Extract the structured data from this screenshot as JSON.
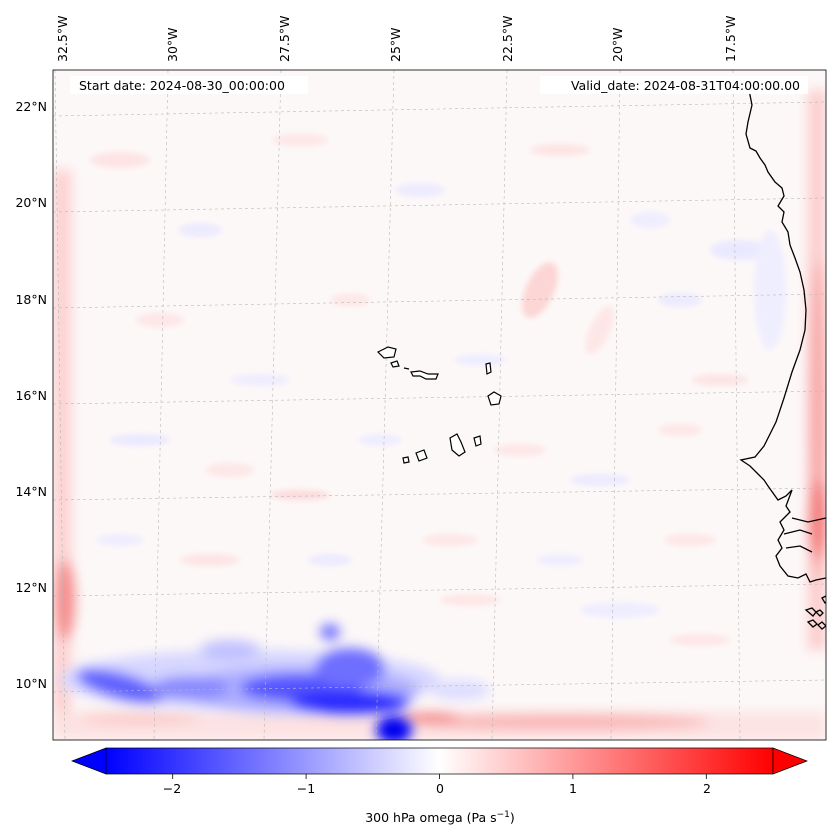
{
  "map": {
    "start_date": "Start date: 2024-08-30_00:00:00",
    "valid_date": "Valid_date: 2024-08-31T04:00:00.00",
    "lon_labels": [
      "32.5°W",
      "30°W",
      "27.5°W",
      "25°W",
      "22.5°W",
      "20°W",
      "17.5°W"
    ],
    "lat_labels": [
      "22°N",
      "20°N",
      "18°N",
      "16°N",
      "14°N",
      "12°N",
      "10°N"
    ],
    "extent": {
      "lon_min": -32.5,
      "lon_max": -15.3,
      "lat_min": 8.8,
      "lat_max": 22.8
    }
  },
  "field": {
    "variable": "300 hPa omega",
    "features": [
      {
        "name": "strong-ascent-band",
        "lon": -28.5,
        "lat": 9.8,
        "omega": -2.2
      },
      {
        "name": "ascent-core",
        "lon": -24.9,
        "lat": 9.3,
        "omega": -2.6
      },
      {
        "name": "ascent-cluster",
        "lon": -26.5,
        "lat": 10.2,
        "omega": -1.4
      },
      {
        "name": "western-edge-descent",
        "lon": -32.3,
        "lat": 11.5,
        "omega": 1.6
      },
      {
        "name": "eastern-edge-descent",
        "lon": -15.5,
        "lat": 12.6,
        "omega": 1.8
      },
      {
        "name": "southern-edge-descent",
        "lon": -21.0,
        "lat": 9.0,
        "omega": 0.8
      }
    ]
  },
  "colorbar": {
    "label": "300 hPa omega (Pa s",
    "label_sup": "−1",
    "label_close": ")",
    "ticks": [
      "−2",
      "−1",
      "0",
      "1",
      "2"
    ],
    "tick_values": [
      -2,
      -1,
      0,
      1,
      2
    ],
    "range": [
      -2.5,
      2.5
    ],
    "min_color": "#0000ff",
    "mid_color": "#ffffff",
    "max_color": "#ff0000"
  }
}
